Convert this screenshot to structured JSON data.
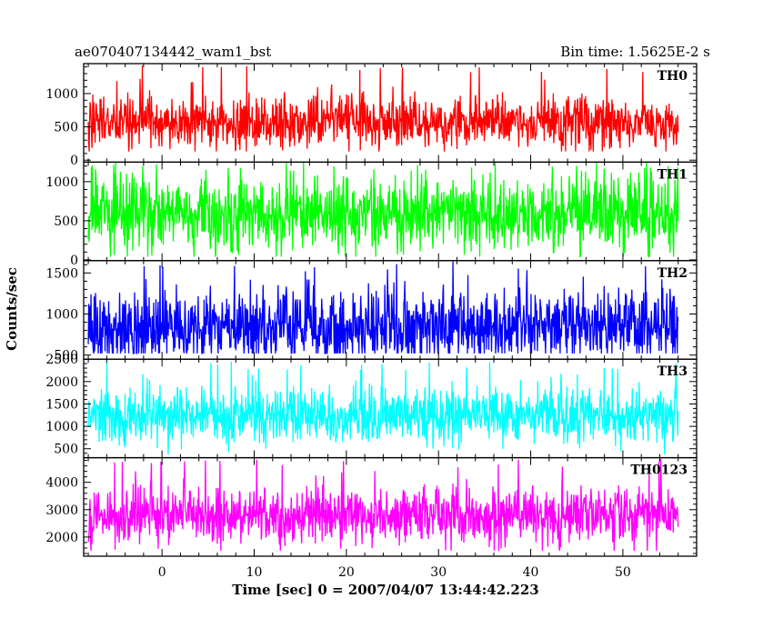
{
  "header": {
    "left_title": "ae070407134442_wam1_bst",
    "right_title": "Bin time: 1.5625E-2 s"
  },
  "chart_data": {
    "type": "line",
    "xlabel": "Time [sec] 0 = 2007/04/07 13:44:42.223",
    "ylabel": "Counts/sec",
    "xlim": [
      -8.5,
      58
    ],
    "data_x_range": [
      -8,
      56
    ],
    "x_ticks": [
      0,
      10,
      20,
      30,
      40,
      50
    ],
    "x_tick_labels": [
      "0",
      "10",
      "20",
      "30",
      "40",
      "50"
    ],
    "bin_time_s": 0.015625,
    "panels": [
      {
        "name": "TH0",
        "color": "#ff0000",
        "ylim": [
          -30,
          1450
        ],
        "y_ticks": [
          0,
          500,
          1000
        ],
        "y_tick_labels": [
          "0",
          "500",
          "1000"
        ],
        "noise": {
          "mean": 560,
          "std": 190,
          "min": 130,
          "max": 1430
        }
      },
      {
        "name": "TH1",
        "color": "#00ff00",
        "ylim": [
          -10,
          1250
        ],
        "y_ticks": [
          0,
          500,
          1000
        ],
        "y_tick_labels": [
          "0",
          "500",
          "1000"
        ],
        "noise": {
          "mean": 600,
          "std": 240,
          "min": 40,
          "max": 1240
        }
      },
      {
        "name": "TH2",
        "color": "#0000ff",
        "ylim": [
          450,
          1650
        ],
        "y_ticks": [
          500,
          1000,
          1500
        ],
        "y_tick_labels": [
          "500",
          "1000",
          "1500"
        ],
        "noise": {
          "mean": 850,
          "std": 220,
          "min": 520,
          "max": 1650
        }
      },
      {
        "name": "TH3",
        "color": "#00ffff",
        "ylim": [
          300,
          2500
        ],
        "y_ticks": [
          500,
          1000,
          1500,
          2000,
          2500
        ],
        "y_tick_labels": [
          "500",
          "1000",
          "1500",
          "2000",
          "2500"
        ],
        "noise": {
          "mean": 1250,
          "std": 330,
          "min": 370,
          "max": 2450
        }
      },
      {
        "name": "TH0123",
        "color": "#ff00ff",
        "ylim": [
          1300,
          4900
        ],
        "y_ticks": [
          2000,
          3000,
          4000
        ],
        "y_tick_labels": [
          "2000",
          "3000",
          "4000"
        ],
        "noise": {
          "mean": 2800,
          "std": 520,
          "min": 1500,
          "max": 4850
        }
      }
    ]
  }
}
